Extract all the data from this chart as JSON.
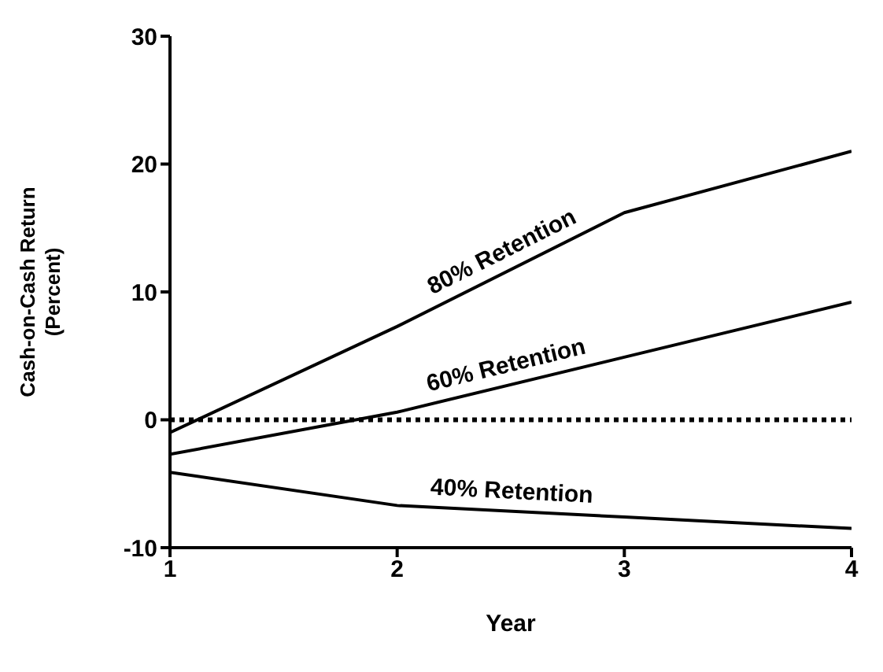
{
  "chart_data": {
    "type": "line",
    "xlabel": "Year",
    "ylabel": "Cash-on-Cash Return\n(Percent)",
    "x": [
      1,
      2,
      3,
      4
    ],
    "xlim": [
      1,
      4
    ],
    "xticks": [
      1,
      2,
      3,
      4
    ],
    "ylim": [
      -10,
      30
    ],
    "yticks": [
      -10,
      0,
      10,
      20,
      30
    ],
    "series": [
      {
        "name": "80% Retention",
        "color": "#000000",
        "values": [
          -1,
          7.3,
          16.2,
          21
        ]
      },
      {
        "name": "60% Retention",
        "color": "#000000",
        "values": [
          -2.7,
          0.6,
          4.9,
          9.2
        ]
      },
      {
        "name": "40% Retention",
        "color": "#000000",
        "values": [
          -4.1,
          -6.7,
          -7.6,
          -8.5
        ]
      }
    ],
    "ref_lines": [
      {
        "axis": "y",
        "value": 0,
        "color": "#000000",
        "line_style": "dotted"
      }
    ],
    "marker": "none",
    "line_style": "solid"
  }
}
